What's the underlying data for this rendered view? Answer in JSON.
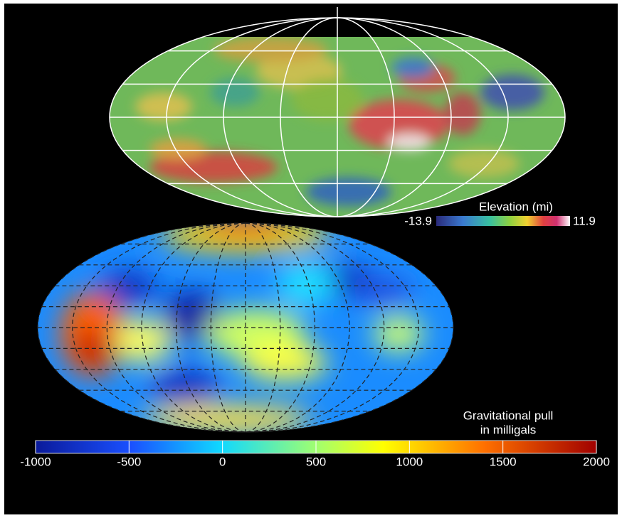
{
  "elevation_map": {
    "colorbar": {
      "label": "Elevation (mi)",
      "min": -13.9,
      "max": 11.9
    }
  },
  "gravity_map": {
    "colorbar": {
      "label_lines": [
        "Gravitational pull",
        "in milligals"
      ],
      "ticks": [
        -1000,
        -500,
        0,
        500,
        1000,
        1500,
        2000
      ]
    }
  }
}
